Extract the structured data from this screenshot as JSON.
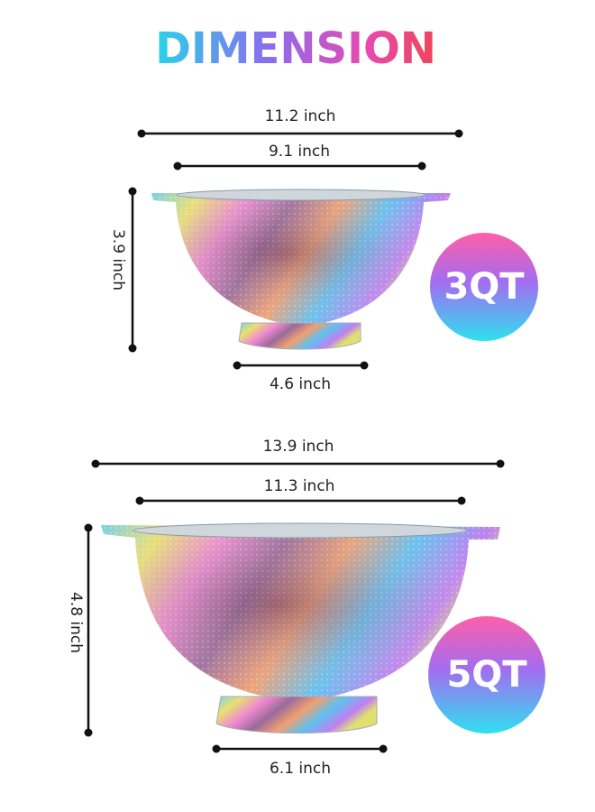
{
  "title": "DIMENSION",
  "products": [
    {
      "rim_width": "11.2 inch",
      "top_width": "9.1 inch",
      "height": "3.9 inch",
      "base_width": "4.6 inch",
      "capacity": "3QT"
    },
    {
      "rim_width": "13.9 inch",
      "top_width": "11.3 inch",
      "height": "4.8 inch",
      "base_width": "6.1 inch",
      "capacity": "5QT"
    }
  ]
}
